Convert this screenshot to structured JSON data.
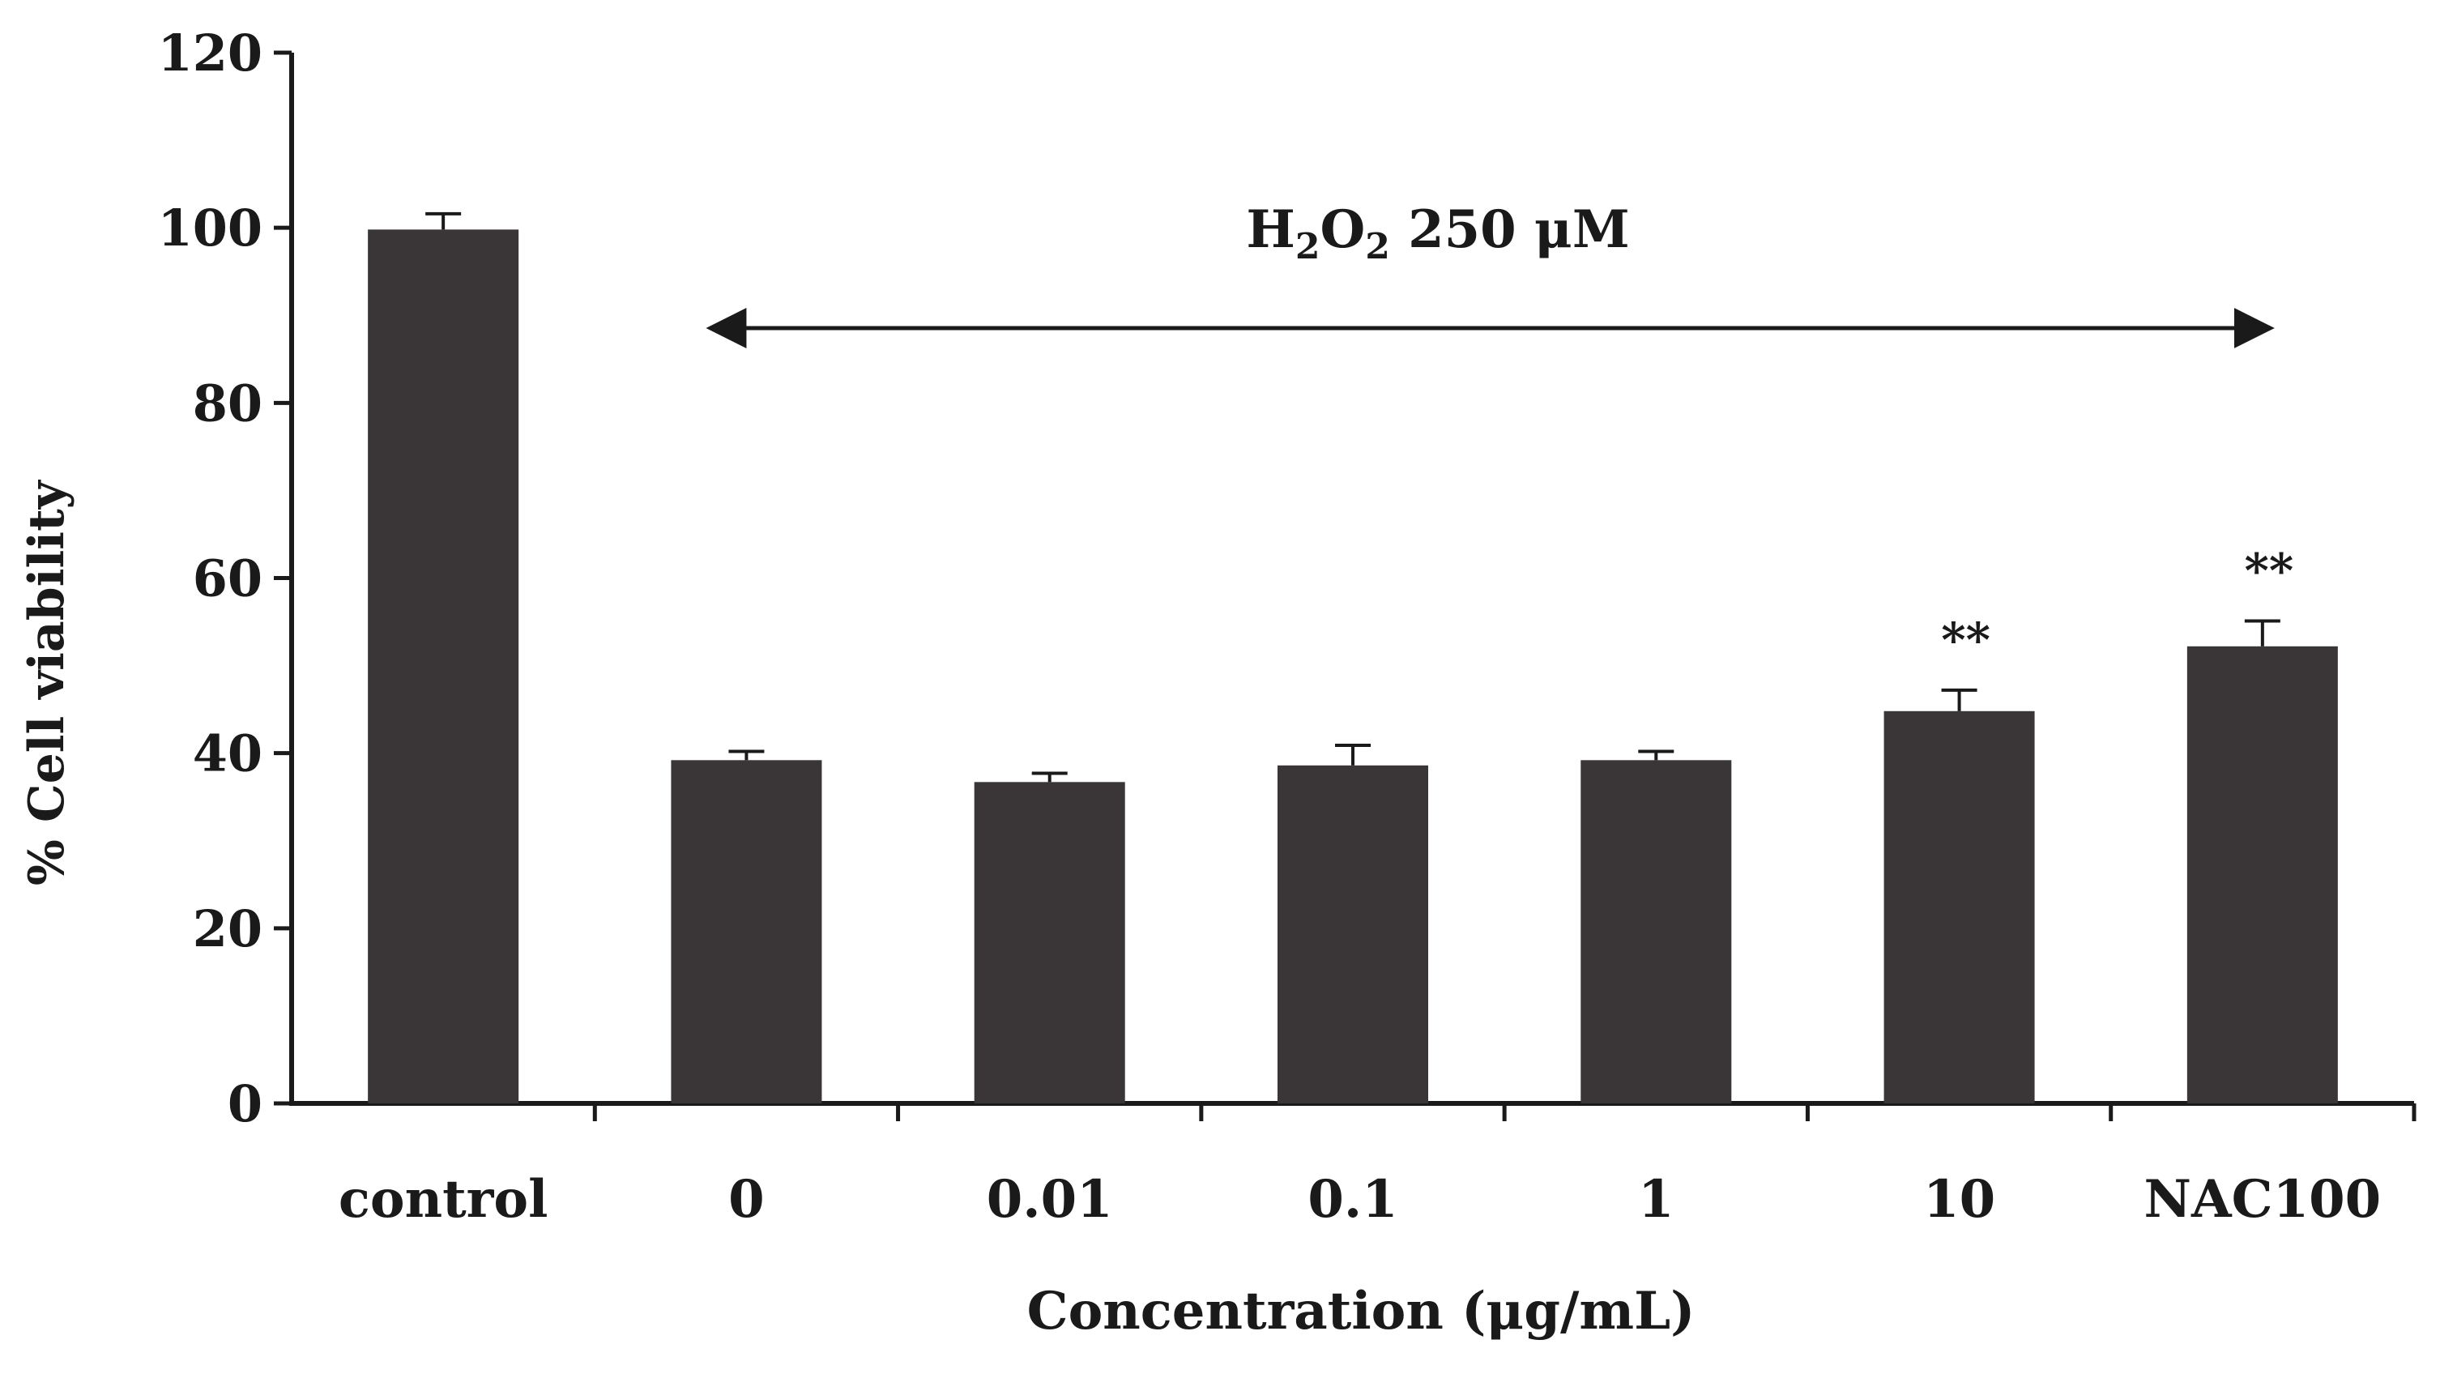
{
  "chart_data": {
    "type": "bar",
    "categories": [
      "control",
      "0",
      "0.01",
      "0.1",
      "1",
      "10",
      "NAC100"
    ],
    "values": [
      99.8,
      39.2,
      36.7,
      38.6,
      39.2,
      44.8,
      52.2
    ],
    "errors": [
      1.8,
      1.0,
      1.0,
      2.3,
      1.0,
      2.4,
      2.9
    ],
    "significance": [
      "",
      "",
      "",
      "",
      "",
      "**",
      "**"
    ],
    "xlabel": "Concentration (μg/mL)",
    "ylabel": "% Cell viability",
    "ylim": [
      0,
      120
    ],
    "yticks": [
      0,
      20,
      40,
      60,
      80,
      100,
      120
    ],
    "grid": false,
    "bar_color": "#3a3536",
    "annotation": {
      "text_main": "H",
      "sub1": "2",
      "text_mid": "O",
      "sub2": "2",
      "text_end": " 250 μM",
      "arrow_from_category": "0",
      "arrow_to_category": "NAC100"
    }
  }
}
